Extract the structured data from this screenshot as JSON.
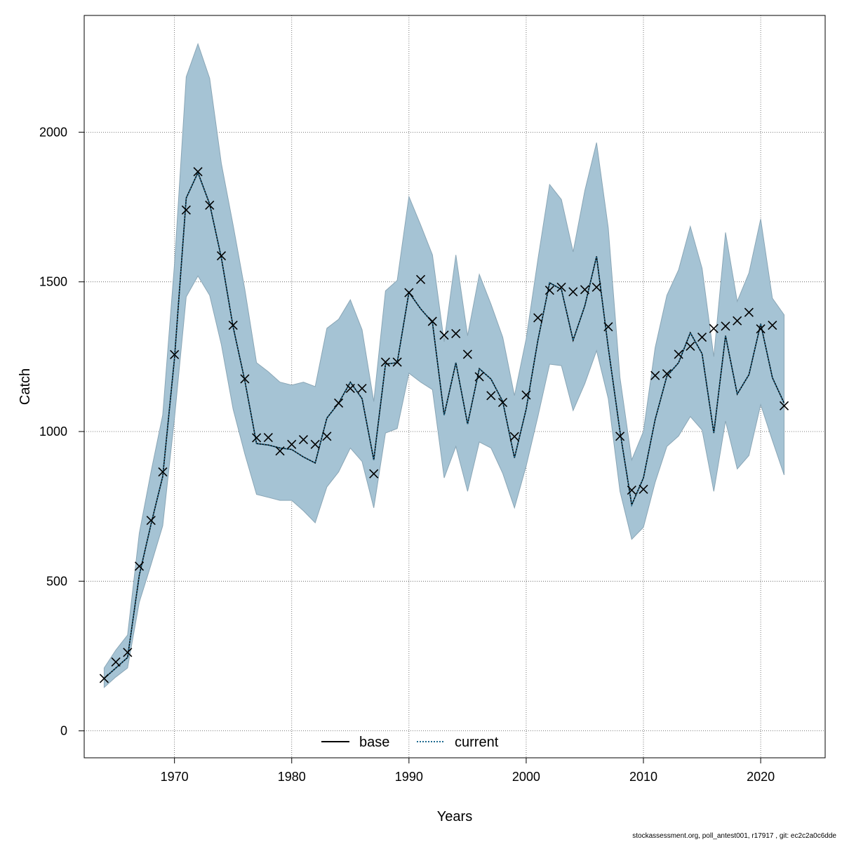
{
  "chart_data": {
    "type": "line",
    "title": "",
    "xlabel": "Years",
    "ylabel": "Catch",
    "xlim": [
      1962.3,
      2025.5
    ],
    "ylim": [
      -90,
      2390
    ],
    "x_ticks": [
      1970,
      1980,
      1990,
      2000,
      2010,
      2020
    ],
    "y_ticks": [
      0,
      500,
      1000,
      1500,
      2000
    ],
    "grid": true,
    "legend_position": "bottom-center",
    "x": [
      1964,
      1965,
      1966,
      1967,
      1968,
      1969,
      1970,
      1971,
      1972,
      1973,
      1974,
      1975,
      1976,
      1977,
      1978,
      1979,
      1980,
      1981,
      1982,
      1983,
      1984,
      1985,
      1986,
      1987,
      1988,
      1989,
      1990,
      1991,
      1992,
      1993,
      1994,
      1995,
      1996,
      1997,
      1998,
      1999,
      2000,
      2001,
      2002,
      2003,
      2004,
      2005,
      2006,
      2007,
      2008,
      2009,
      2010,
      2011,
      2012,
      2013,
      2014,
      2015,
      2016,
      2017,
      2018,
      2019,
      2020,
      2021,
      2022
    ],
    "observed": [
      175,
      230,
      262,
      550,
      703,
      865,
      1257,
      1740,
      1868,
      1756,
      1587,
      1355,
      1176,
      979,
      980,
      935,
      957,
      973,
      957,
      984,
      1095,
      1144,
      1144,
      859,
      1232,
      1232,
      1464,
      1508,
      1368,
      1322,
      1327,
      1258,
      1183,
      1120,
      1097,
      983,
      1122,
      1380,
      1472,
      1482,
      1467,
      1474,
      1482,
      1350,
      984,
      804,
      807,
      1187,
      1193,
      1258,
      1285,
      1315,
      1344,
      1352,
      1370,
      1398,
      1343,
      1355,
      1086
    ],
    "series": [
      {
        "name": "base",
        "style": "solid",
        "color": "#000000",
        "values": [
          175,
          210,
          245,
          520,
          690,
          850,
          1245,
          1780,
          1865,
          1760,
          1580,
          1350,
          1170,
          960,
          955,
          945,
          940,
          915,
          895,
          1045,
          1095,
          1165,
          1110,
          905,
          1225,
          1230,
          1465,
          1410,
          1365,
          1055,
          1230,
          1025,
          1210,
          1175,
          1100,
          912,
          1075,
          1305,
          1497,
          1475,
          1305,
          1420,
          1585,
          1280,
          1000,
          755,
          845,
          1040,
          1185,
          1230,
          1330,
          1260,
          995,
          1320,
          1125,
          1190,
          1360,
          1180,
          1095
        ]
      },
      {
        "name": "current",
        "style": "dotted",
        "color": "#1f6a8f",
        "values": [
          175,
          210,
          245,
          520,
          690,
          850,
          1245,
          1780,
          1865,
          1760,
          1580,
          1350,
          1170,
          960,
          955,
          945,
          940,
          915,
          895,
          1045,
          1095,
          1165,
          1110,
          905,
          1225,
          1230,
          1465,
          1410,
          1365,
          1055,
          1230,
          1025,
          1210,
          1175,
          1100,
          912,
          1075,
          1305,
          1497,
          1475,
          1305,
          1420,
          1585,
          1280,
          1000,
          755,
          845,
          1040,
          1185,
          1230,
          1330,
          1260,
          995,
          1320,
          1125,
          1190,
          1360,
          1180,
          1095
        ]
      }
    ],
    "ci_upper": [
      210,
      270,
      320,
      660,
      865,
      1055,
      1560,
      2185,
      2295,
      2180,
      1895,
      1690,
      1475,
      1230,
      1200,
      1165,
      1155,
      1165,
      1150,
      1345,
      1375,
      1440,
      1340,
      1100,
      1470,
      1505,
      1785,
      1690,
      1590,
      1300,
      1590,
      1320,
      1525,
      1425,
      1315,
      1120,
      1310,
      1575,
      1825,
      1775,
      1600,
      1805,
      1965,
      1680,
      1180,
      905,
      1000,
      1280,
      1455,
      1540,
      1685,
      1545,
      1250,
      1665,
      1435,
      1530,
      1710,
      1445,
      1390
    ],
    "ci_lower": [
      145,
      180,
      210,
      430,
      555,
      685,
      1045,
      1450,
      1520,
      1455,
      1290,
      1075,
      925,
      790,
      780,
      770,
      770,
      735,
      695,
      815,
      865,
      945,
      900,
      745,
      995,
      1010,
      1195,
      1165,
      1140,
      845,
      950,
      800,
      965,
      945,
      860,
      745,
      885,
      1050,
      1225,
      1220,
      1070,
      1160,
      1270,
      1110,
      800,
      640,
      680,
      830,
      950,
      985,
      1050,
      1005,
      800,
      1035,
      875,
      920,
      1090,
      970,
      855
    ],
    "ci_color": "#a5c3d4",
    "marker": "x"
  },
  "footer_text": "stockassessment.org, poll_antest001, r17917 , git: ec2c2a0c6dde"
}
